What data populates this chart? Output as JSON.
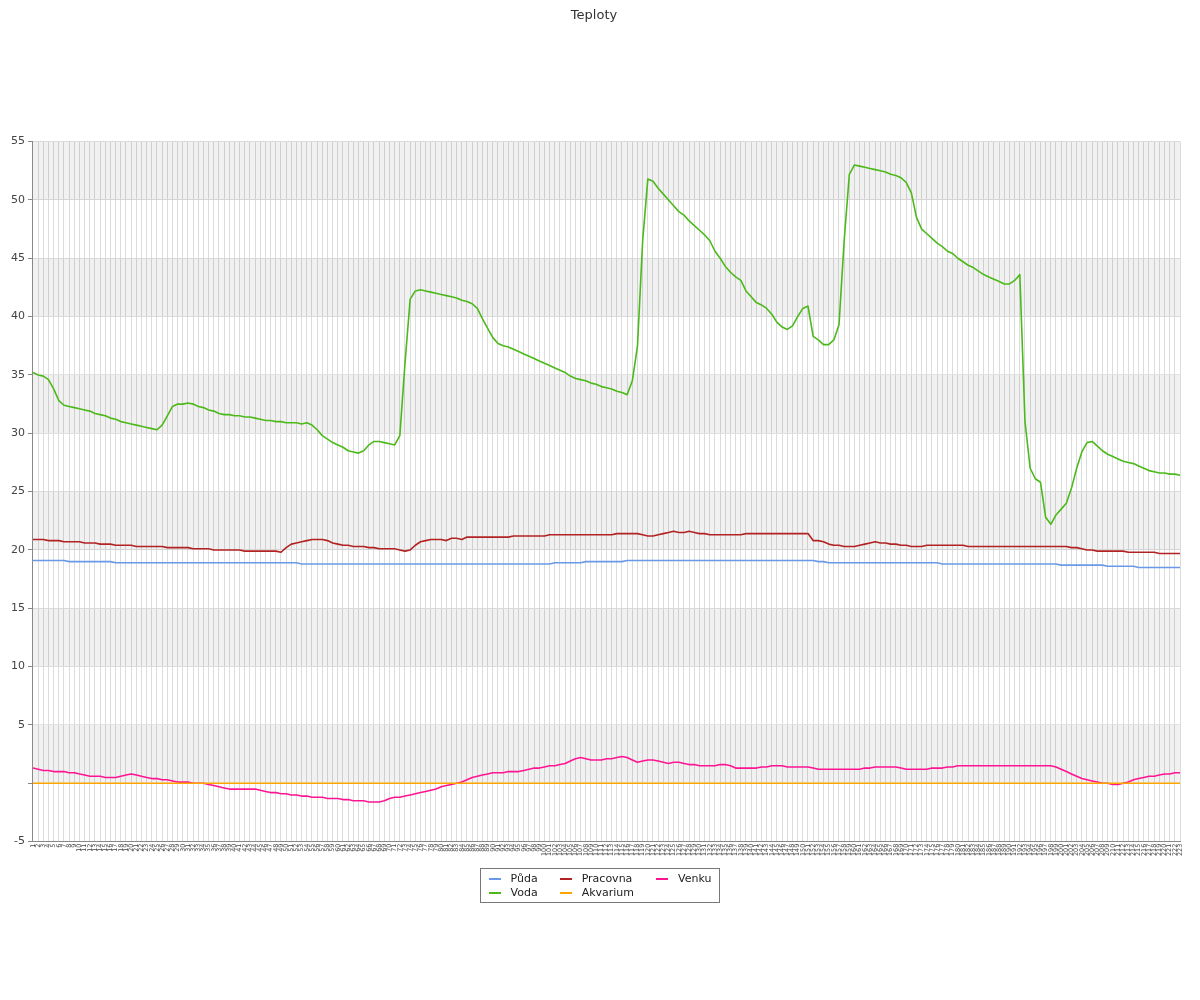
{
  "chart_data": {
    "type": "line",
    "title": "Teploty",
    "categories": [
      "1",
      "2",
      "3",
      "4",
      "5",
      "6",
      "7",
      "8",
      "9",
      "10",
      "11",
      "12",
      "13",
      "14",
      "15",
      "16",
      "17",
      "18",
      "19",
      "20",
      "21",
      "22",
      "23",
      "24",
      "25",
      "26",
      "27",
      "28",
      "29",
      "30",
      "31",
      "32",
      "33",
      "34",
      "35",
      "36",
      "37",
      "38",
      "39",
      "40",
      "41",
      "42",
      "43",
      "44",
      "45",
      "46",
      "47",
      "48",
      "49",
      "50",
      "51",
      "52",
      "53",
      "54",
      "55",
      "56",
      "57",
      "58",
      "59",
      "60",
      "61",
      "62",
      "63",
      "64",
      "65",
      "66",
      "67",
      "68",
      "69",
      "70",
      "71",
      "72",
      "73",
      "74",
      "75",
      "76",
      "77",
      "78",
      "79",
      "80",
      "81",
      "82",
      "83",
      "84",
      "85",
      "86",
      "87",
      "88",
      "89",
      "90",
      "91",
      "92",
      "93",
      "94",
      "95",
      "96",
      "97",
      "98",
      "99",
      "100",
      "101",
      "102",
      "103",
      "104",
      "105",
      "106",
      "107",
      "108",
      "109",
      "110",
      "111",
      "112",
      "113",
      "114",
      "115",
      "116",
      "117",
      "118",
      "119",
      "120",
      "121",
      "122",
      "123",
      "124",
      "125",
      "126",
      "127",
      "128",
      "129",
      "130",
      "131",
      "132",
      "133",
      "134",
      "135",
      "136",
      "137",
      "138",
      "139",
      "140",
      "141",
      "142",
      "143",
      "144",
      "145",
      "146",
      "147",
      "148",
      "149",
      "150",
      "151",
      "152",
      "153",
      "154",
      "155",
      "156",
      "157",
      "158",
      "159",
      "160",
      "161",
      "162",
      "163",
      "164",
      "165",
      "166",
      "167",
      "168",
      "169",
      "170",
      "171",
      "172",
      "173",
      "174",
      "175",
      "176",
      "177",
      "178",
      "179",
      "180",
      "181",
      "182",
      "183",
      "184",
      "185",
      "186",
      "187",
      "188",
      "189",
      "190",
      "191",
      "192",
      "193",
      "194",
      "195",
      "196",
      "197",
      "198",
      "199",
      "200",
      "201",
      "202",
      "203",
      "204",
      "205",
      "206",
      "207",
      "208",
      "209",
      "210",
      "211",
      "212",
      "213",
      "214",
      "215",
      "216",
      "217",
      "218",
      "219",
      "220",
      "221",
      "222",
      "223"
    ],
    "series": [
      {
        "name": "Půda",
        "color": "#6a99e8",
        "values": [
          19.1,
          19.1,
          19.1,
          19.1,
          19.1,
          19.1,
          19.1,
          19.0,
          19.0,
          19.0,
          19.0,
          19.0,
          19.0,
          19.0,
          19.0,
          19.0,
          18.9,
          18.9,
          18.9,
          18.9,
          18.9,
          18.9,
          18.9,
          18.9,
          18.9,
          18.9,
          18.9,
          18.9,
          18.9,
          18.9,
          18.9,
          18.9,
          18.9,
          18.9,
          18.9,
          18.9,
          18.9,
          18.9,
          18.9,
          18.9,
          18.9,
          18.9,
          18.9,
          18.9,
          18.9,
          18.9,
          18.9,
          18.9,
          18.9,
          18.9,
          18.9,
          18.9,
          18.8,
          18.8,
          18.8,
          18.8,
          18.8,
          18.8,
          18.8,
          18.8,
          18.8,
          18.8,
          18.8,
          18.8,
          18.8,
          18.8,
          18.8,
          18.8,
          18.8,
          18.8,
          18.8,
          18.8,
          18.8,
          18.8,
          18.8,
          18.8,
          18.8,
          18.8,
          18.8,
          18.8,
          18.8,
          18.8,
          18.8,
          18.8,
          18.8,
          18.8,
          18.8,
          18.8,
          18.8,
          18.8,
          18.8,
          18.8,
          18.8,
          18.8,
          18.8,
          18.8,
          18.8,
          18.8,
          18.8,
          18.8,
          18.8,
          18.9,
          18.9,
          18.9,
          18.9,
          18.9,
          18.9,
          19.0,
          19.0,
          19.0,
          19.0,
          19.0,
          19.0,
          19.0,
          19.0,
          19.1,
          19.1,
          19.1,
          19.1,
          19.1,
          19.1,
          19.1,
          19.1,
          19.1,
          19.1,
          19.1,
          19.1,
          19.1,
          19.1,
          19.1,
          19.1,
          19.1,
          19.1,
          19.1,
          19.1,
          19.1,
          19.1,
          19.1,
          19.1,
          19.1,
          19.1,
          19.1,
          19.1,
          19.1,
          19.1,
          19.1,
          19.1,
          19.1,
          19.1,
          19.1,
          19.1,
          19.1,
          19.0,
          19.0,
          18.9,
          18.9,
          18.9,
          18.9,
          18.9,
          18.9,
          18.9,
          18.9,
          18.9,
          18.9,
          18.9,
          18.9,
          18.9,
          18.9,
          18.9,
          18.9,
          18.9,
          18.9,
          18.9,
          18.9,
          18.9,
          18.9,
          18.8,
          18.8,
          18.8,
          18.8,
          18.8,
          18.8,
          18.8,
          18.8,
          18.8,
          18.8,
          18.8,
          18.8,
          18.8,
          18.8,
          18.8,
          18.8,
          18.8,
          18.8,
          18.8,
          18.8,
          18.8,
          18.8,
          18.8,
          18.7,
          18.7,
          18.7,
          18.7,
          18.7,
          18.7,
          18.7,
          18.7,
          18.7,
          18.6,
          18.6,
          18.6,
          18.6,
          18.6,
          18.6,
          18.5,
          18.5,
          18.5,
          18.5,
          18.5,
          18.5,
          18.5,
          18.5,
          18.5
        ]
      },
      {
        "name": "Voda",
        "color": "#4cb91a",
        "values": [
          35.2,
          35.0,
          34.9,
          34.6,
          33.8,
          32.8,
          32.4,
          32.3,
          32.2,
          32.1,
          32.0,
          31.9,
          31.7,
          31.6,
          31.5,
          31.3,
          31.2,
          31.0,
          30.9,
          30.8,
          30.7,
          30.6,
          30.5,
          30.4,
          30.3,
          30.7,
          31.5,
          32.3,
          32.5,
          32.5,
          32.6,
          32.5,
          32.3,
          32.2,
          32.0,
          31.9,
          31.7,
          31.6,
          31.6,
          31.5,
          31.5,
          31.4,
          31.4,
          31.3,
          31.2,
          31.1,
          31.1,
          31.0,
          31.0,
          30.9,
          30.9,
          30.9,
          30.8,
          30.9,
          30.7,
          30.3,
          29.8,
          29.5,
          29.2,
          29.0,
          28.8,
          28.5,
          28.4,
          28.3,
          28.5,
          29.0,
          29.3,
          29.3,
          29.2,
          29.1,
          29.0,
          29.8,
          36.0,
          41.5,
          42.2,
          42.3,
          42.2,
          42.1,
          42.0,
          41.9,
          41.8,
          41.7,
          41.6,
          41.4,
          41.3,
          41.1,
          40.7,
          39.8,
          39.0,
          38.2,
          37.7,
          37.5,
          37.4,
          37.2,
          37.0,
          36.8,
          36.6,
          36.4,
          36.2,
          36.0,
          35.8,
          35.6,
          35.4,
          35.2,
          34.9,
          34.7,
          34.6,
          34.5,
          34.3,
          34.2,
          34.0,
          33.9,
          33.8,
          33.6,
          33.5,
          33.3,
          34.5,
          37.5,
          46.5,
          51.8,
          51.6,
          51.0,
          50.5,
          50.0,
          49.5,
          49.0,
          48.7,
          48.2,
          47.8,
          47.4,
          47.0,
          46.5,
          45.6,
          45.0,
          44.3,
          43.8,
          43.4,
          43.1,
          42.2,
          41.7,
          41.2,
          41.0,
          40.7,
          40.2,
          39.5,
          39.1,
          38.9,
          39.2,
          40.0,
          40.7,
          40.9,
          38.3,
          38.0,
          37.6,
          37.6,
          38.0,
          39.3,
          46.5,
          52.2,
          53.0,
          52.9,
          52.8,
          52.7,
          52.6,
          52.5,
          52.4,
          52.2,
          52.1,
          51.9,
          51.5,
          50.6,
          48.5,
          47.5,
          47.1,
          46.7,
          46.3,
          46.0,
          45.6,
          45.4,
          45.0,
          44.7,
          44.4,
          44.2,
          43.9,
          43.6,
          43.4,
          43.2,
          43.0,
          42.8,
          42.8,
          43.1,
          43.6,
          31.0,
          27.0,
          26.1,
          25.8,
          22.8,
          22.2,
          23.0,
          23.5,
          24.0,
          25.3,
          27.0,
          28.4,
          29.2,
          29.3,
          28.9,
          28.5,
          28.2,
          28.0,
          27.8,
          27.6,
          27.5,
          27.4,
          27.2,
          27.0,
          26.8,
          26.7,
          26.6,
          26.6,
          26.5,
          26.5,
          26.4
        ]
      },
      {
        "name": "Pracovna",
        "color": "#b22222",
        "values": [
          20.9,
          20.9,
          20.9,
          20.8,
          20.8,
          20.8,
          20.7,
          20.7,
          20.7,
          20.7,
          20.6,
          20.6,
          20.6,
          20.5,
          20.5,
          20.5,
          20.4,
          20.4,
          20.4,
          20.4,
          20.3,
          20.3,
          20.3,
          20.3,
          20.3,
          20.3,
          20.2,
          20.2,
          20.2,
          20.2,
          20.2,
          20.1,
          20.1,
          20.1,
          20.1,
          20.0,
          20.0,
          20.0,
          20.0,
          20.0,
          20.0,
          19.9,
          19.9,
          19.9,
          19.9,
          19.9,
          19.9,
          19.9,
          19.8,
          20.2,
          20.5,
          20.6,
          20.7,
          20.8,
          20.9,
          20.9,
          20.9,
          20.8,
          20.6,
          20.5,
          20.4,
          20.4,
          20.3,
          20.3,
          20.3,
          20.2,
          20.2,
          20.1,
          20.1,
          20.1,
          20.1,
          20.0,
          19.9,
          20.0,
          20.4,
          20.7,
          20.8,
          20.9,
          20.9,
          20.9,
          20.8,
          21.0,
          21.0,
          20.9,
          21.1,
          21.1,
          21.1,
          21.1,
          21.1,
          21.1,
          21.1,
          21.1,
          21.1,
          21.2,
          21.2,
          21.2,
          21.2,
          21.2,
          21.2,
          21.2,
          21.3,
          21.3,
          21.3,
          21.3,
          21.3,
          21.3,
          21.3,
          21.3,
          21.3,
          21.3,
          21.3,
          21.3,
          21.3,
          21.4,
          21.4,
          21.4,
          21.4,
          21.4,
          21.3,
          21.2,
          21.2,
          21.3,
          21.4,
          21.5,
          21.6,
          21.5,
          21.5,
          21.6,
          21.5,
          21.4,
          21.4,
          21.3,
          21.3,
          21.3,
          21.3,
          21.3,
          21.3,
          21.3,
          21.4,
          21.4,
          21.4,
          21.4,
          21.4,
          21.4,
          21.4,
          21.4,
          21.4,
          21.4,
          21.4,
          21.4,
          21.4,
          20.8,
          20.8,
          20.7,
          20.5,
          20.4,
          20.4,
          20.3,
          20.3,
          20.3,
          20.4,
          20.5,
          20.6,
          20.7,
          20.6,
          20.6,
          20.5,
          20.5,
          20.4,
          20.4,
          20.3,
          20.3,
          20.3,
          20.4,
          20.4,
          20.4,
          20.4,
          20.4,
          20.4,
          20.4,
          20.4,
          20.3,
          20.3,
          20.3,
          20.3,
          20.3,
          20.3,
          20.3,
          20.3,
          20.3,
          20.3,
          20.3,
          20.3,
          20.3,
          20.3,
          20.3,
          20.3,
          20.3,
          20.3,
          20.3,
          20.3,
          20.2,
          20.2,
          20.1,
          20.0,
          20.0,
          19.9,
          19.9,
          19.9,
          19.9,
          19.9,
          19.9,
          19.8,
          19.8,
          19.8,
          19.8,
          19.8,
          19.8,
          19.7,
          19.7,
          19.7,
          19.7,
          19.7
        ]
      },
      {
        "name": "Akvarium",
        "color": "#ffa500",
        "values": [
          0,
          0,
          0,
          0,
          0,
          0,
          0,
          0,
          0,
          0,
          0,
          0,
          0,
          0,
          0,
          0,
          0,
          0,
          0,
          0,
          0,
          0,
          0,
          0,
          0,
          0,
          0,
          0,
          0,
          0,
          0,
          0,
          0,
          0,
          0,
          0,
          0,
          0,
          0,
          0,
          0,
          0,
          0,
          0,
          0,
          0,
          0,
          0,
          0,
          0,
          0,
          0,
          0,
          0,
          0,
          0,
          0,
          0,
          0,
          0,
          0,
          0,
          0,
          0,
          0,
          0,
          0,
          0,
          0,
          0,
          0,
          0,
          0,
          0,
          0,
          0,
          0,
          0,
          0,
          0,
          0,
          0,
          0,
          0,
          0,
          0,
          0,
          0,
          0,
          0,
          0,
          0,
          0,
          0,
          0,
          0,
          0,
          0,
          0,
          0,
          0,
          0,
          0,
          0,
          0,
          0,
          0,
          0,
          0,
          0,
          0,
          0,
          0,
          0,
          0,
          0,
          0,
          0,
          0,
          0,
          0,
          0,
          0,
          0,
          0,
          0,
          0,
          0,
          0,
          0,
          0,
          0,
          0,
          0,
          0,
          0,
          0,
          0,
          0,
          0,
          0,
          0,
          0,
          0,
          0,
          0,
          0,
          0,
          0,
          0,
          0,
          0,
          0,
          0,
          0,
          0,
          0,
          0,
          0,
          0,
          0,
          0,
          0,
          0,
          0,
          0,
          0,
          0,
          0,
          0,
          0,
          0,
          0,
          0,
          0,
          0,
          0,
          0,
          0,
          0,
          0,
          0,
          0,
          0,
          0,
          0,
          0,
          0,
          0,
          0,
          0,
          0,
          0,
          0,
          0,
          0,
          0,
          0,
          0,
          0,
          0,
          0,
          0,
          0,
          0,
          0,
          0,
          0,
          0,
          0,
          0,
          0,
          0,
          0,
          0,
          0,
          0,
          0,
          0,
          0,
          0,
          0,
          0
        ]
      },
      {
        "name": "Venku",
        "color": "#ff1493",
        "values": [
          1.3,
          1.2,
          1.1,
          1.1,
          1.0,
          1.0,
          1.0,
          0.9,
          0.9,
          0.8,
          0.7,
          0.6,
          0.6,
          0.6,
          0.5,
          0.5,
          0.5,
          0.6,
          0.7,
          0.8,
          0.7,
          0.6,
          0.5,
          0.4,
          0.4,
          0.3,
          0.3,
          0.2,
          0.1,
          0.1,
          0.1,
          0.0,
          0.0,
          0.0,
          -0.1,
          -0.2,
          -0.3,
          -0.4,
          -0.5,
          -0.5,
          -0.5,
          -0.5,
          -0.5,
          -0.5,
          -0.6,
          -0.7,
          -0.8,
          -0.8,
          -0.9,
          -0.9,
          -1.0,
          -1.0,
          -1.1,
          -1.1,
          -1.2,
          -1.2,
          -1.2,
          -1.3,
          -1.3,
          -1.3,
          -1.4,
          -1.4,
          -1.5,
          -1.5,
          -1.5,
          -1.6,
          -1.6,
          -1.6,
          -1.5,
          -1.3,
          -1.2,
          -1.2,
          -1.1,
          -1.0,
          -0.9,
          -0.8,
          -0.7,
          -0.6,
          -0.5,
          -0.3,
          -0.2,
          -0.1,
          0.0,
          0.1,
          0.3,
          0.5,
          0.6,
          0.7,
          0.8,
          0.9,
          0.9,
          0.9,
          1.0,
          1.0,
          1.0,
          1.1,
          1.2,
          1.3,
          1.3,
          1.4,
          1.5,
          1.5,
          1.6,
          1.7,
          1.9,
          2.1,
          2.2,
          2.1,
          2.0,
          2.0,
          2.0,
          2.1,
          2.1,
          2.2,
          2.3,
          2.2,
          2.0,
          1.8,
          1.9,
          2.0,
          2.0,
          1.9,
          1.8,
          1.7,
          1.8,
          1.8,
          1.7,
          1.6,
          1.6,
          1.5,
          1.5,
          1.5,
          1.5,
          1.6,
          1.6,
          1.5,
          1.3,
          1.3,
          1.3,
          1.3,
          1.3,
          1.4,
          1.4,
          1.5,
          1.5,
          1.5,
          1.4,
          1.4,
          1.4,
          1.4,
          1.4,
          1.3,
          1.2,
          1.2,
          1.2,
          1.2,
          1.2,
          1.2,
          1.2,
          1.2,
          1.2,
          1.3,
          1.3,
          1.4,
          1.4,
          1.4,
          1.4,
          1.4,
          1.3,
          1.2,
          1.2,
          1.2,
          1.2,
          1.2,
          1.3,
          1.3,
          1.3,
          1.4,
          1.4,
          1.5,
          1.5,
          1.5,
          1.5,
          1.5,
          1.5,
          1.5,
          1.5,
          1.5,
          1.5,
          1.5,
          1.5,
          1.5,
          1.5,
          1.5,
          1.5,
          1.5,
          1.5,
          1.5,
          1.4,
          1.2,
          1.0,
          0.8,
          0.6,
          0.4,
          0.3,
          0.2,
          0.1,
          0.0,
          0.0,
          -0.1,
          -0.1,
          0.0,
          0.1,
          0.3,
          0.4,
          0.5,
          0.6,
          0.6,
          0.7,
          0.8,
          0.8,
          0.9,
          0.9
        ]
      }
    ],
    "ylim": [
      -5,
      55
    ],
    "yticks": [
      -5,
      {
        "value": 0,
        "label": null
      },
      5,
      10,
      15,
      20,
      25,
      30,
      35,
      40,
      45,
      50,
      55
    ],
    "grid": true,
    "legend": "bottom",
    "marker": "none",
    "line_style": "solid"
  }
}
